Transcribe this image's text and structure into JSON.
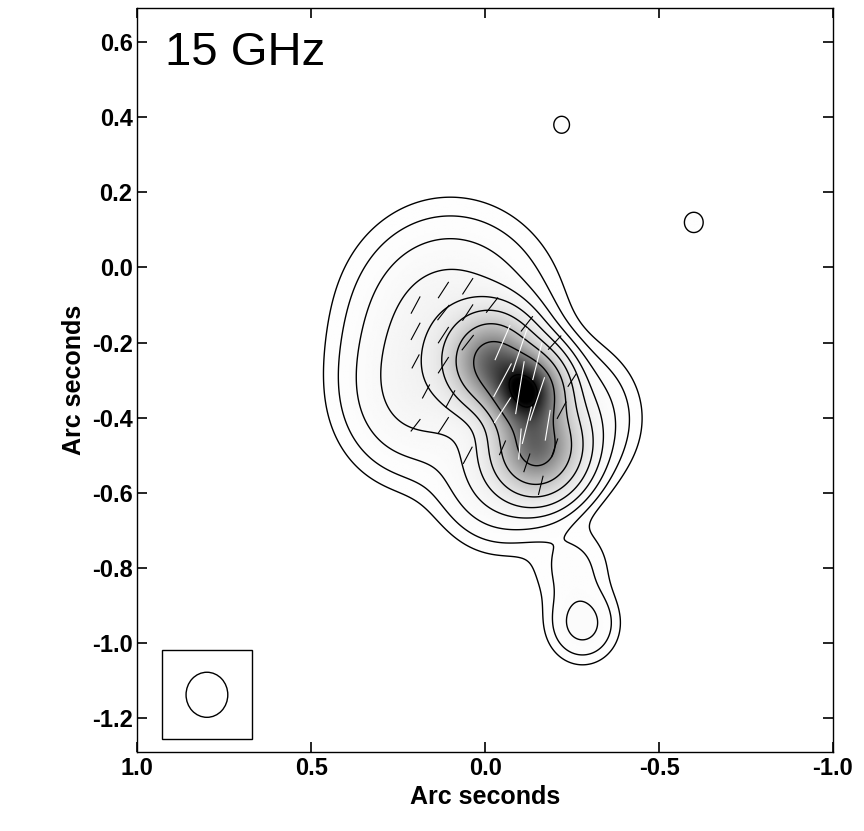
{
  "chart_data": {
    "type": "contour",
    "title": "15 GHz",
    "x_label": "Arc seconds",
    "y_label": "Arc seconds",
    "xlim": [
      1.0,
      -1.0
    ],
    "ylim": [
      -1.29,
      0.69
    ],
    "xticks": [
      {
        "value": 1.0,
        "label": "1.0"
      },
      {
        "value": 0.5,
        "label": "0.5"
      },
      {
        "value": 0.0,
        "label": "0.0"
      },
      {
        "value": -0.5,
        "label": "-0.5"
      },
      {
        "value": -1.0,
        "label": "-1.0"
      }
    ],
    "yticks": [
      {
        "value": 0.6,
        "label": "0.6"
      },
      {
        "value": 0.4,
        "label": "0.4"
      },
      {
        "value": 0.2,
        "label": "0.2"
      },
      {
        "value": 0.0,
        "label": "0.0"
      },
      {
        "value": -0.2,
        "label": "-0.2"
      },
      {
        "value": -0.4,
        "label": "-0.4"
      },
      {
        "value": -0.6,
        "label": "-0.6"
      },
      {
        "value": -0.8,
        "label": "-0.8"
      },
      {
        "value": -1.0,
        "label": "-1.0"
      },
      {
        "value": -1.2,
        "label": "-1.2"
      }
    ],
    "components": [
      {
        "x": -0.12,
        "y": -0.33,
        "peak": 1.0,
        "sigma": 0.06
      },
      {
        "x": -0.02,
        "y": -0.25,
        "peak": 0.6,
        "sigma": 0.07
      },
      {
        "x": -0.15,
        "y": -0.48,
        "peak": 0.6,
        "sigma": 0.07
      },
      {
        "x": 0.1,
        "y": -0.15,
        "peak": 0.05,
        "sigma": 0.15
      },
      {
        "x": 0.2,
        "y": -0.35,
        "peak": 0.03,
        "sigma": 0.12
      },
      {
        "x": -0.05,
        "y": -0.55,
        "peak": 0.04,
        "sigma": 0.1
      },
      {
        "x": -0.25,
        "y": -0.4,
        "peak": 0.03,
        "sigma": 0.1
      },
      {
        "x": -0.25,
        "y": -0.8,
        "peak": 0.01,
        "sigma": 0.07
      },
      {
        "x": -0.28,
        "y": -0.95,
        "peak": 0.02,
        "sigma": 0.06
      },
      {
        "x": -0.22,
        "y": 0.38,
        "peak": 0.006,
        "sigma": 0.025
      },
      {
        "x": -0.6,
        "y": 0.12,
        "peak": 0.006,
        "sigma": 0.03
      }
    ],
    "contour_levels": [
      0.004,
      0.008,
      0.016,
      0.032,
      0.064,
      0.128,
      0.256,
      0.512,
      1.024
    ],
    "grayscale_range": [
      0.0,
      1.1
    ],
    "beam": [
      0.12,
      0.12,
      0
    ],
    "series": [
      {
        "color": "black",
        "vectors": [
          [
            0.12,
            -0.06,
            -35,
            0.05
          ],
          [
            0.05,
            -0.05,
            -35,
            0.05
          ],
          [
            0.2,
            -0.1,
            -30,
            0.05
          ],
          [
            0.12,
            -0.12,
            -40,
            0.05
          ],
          [
            0.05,
            -0.12,
            -35,
            0.05
          ],
          [
            -0.02,
            -0.1,
            -40,
            0.05
          ],
          [
            0.2,
            -0.17,
            -30,
            0.05
          ],
          [
            0.12,
            -0.18,
            -35,
            0.05
          ],
          [
            0.05,
            -0.2,
            -40,
            0.05
          ],
          [
            0.2,
            -0.25,
            -30,
            0.04
          ],
          [
            0.12,
            -0.26,
            -35,
            0.05
          ],
          [
            0.17,
            -0.33,
            -30,
            0.04
          ],
          [
            0.1,
            -0.35,
            -30,
            0.05
          ],
          [
            0.2,
            -0.42,
            -40,
            0.04
          ],
          [
            0.12,
            -0.42,
            -35,
            0.05
          ],
          [
            0.05,
            -0.5,
            -30,
            0.05
          ],
          [
            -0.05,
            -0.48,
            -25,
            0.04
          ],
          [
            -0.12,
            -0.52,
            -20,
            0.05
          ],
          [
            -0.2,
            -0.48,
            -20,
            0.05
          ],
          [
            -0.22,
            -0.38,
            -30,
            0.05
          ],
          [
            -0.25,
            -0.3,
            -35,
            0.04
          ],
          [
            -0.2,
            -0.2,
            -45,
            0.05
          ],
          [
            -0.12,
            -0.15,
            -40,
            0.05
          ],
          [
            -0.16,
            -0.58,
            -15,
            0.05
          ]
        ]
      },
      {
        "color": "white",
        "vectors": [
          [
            -0.05,
            -0.2,
            -25,
            0.1
          ],
          [
            -0.1,
            -0.22,
            -20,
            0.12
          ],
          [
            -0.15,
            -0.25,
            -15,
            0.1
          ],
          [
            -0.05,
            -0.3,
            -30,
            0.1
          ],
          [
            -0.1,
            -0.32,
            -10,
            0.14
          ],
          [
            -0.15,
            -0.35,
            -20,
            0.12
          ],
          [
            -0.05,
            -0.38,
            -35,
            0.08
          ],
          [
            -0.12,
            -0.42,
            -15,
            0.1
          ],
          [
            -0.18,
            -0.42,
            -10,
            0.08
          ],
          [
            -0.1,
            -0.47,
            -5,
            0.08
          ]
        ]
      }
    ]
  }
}
